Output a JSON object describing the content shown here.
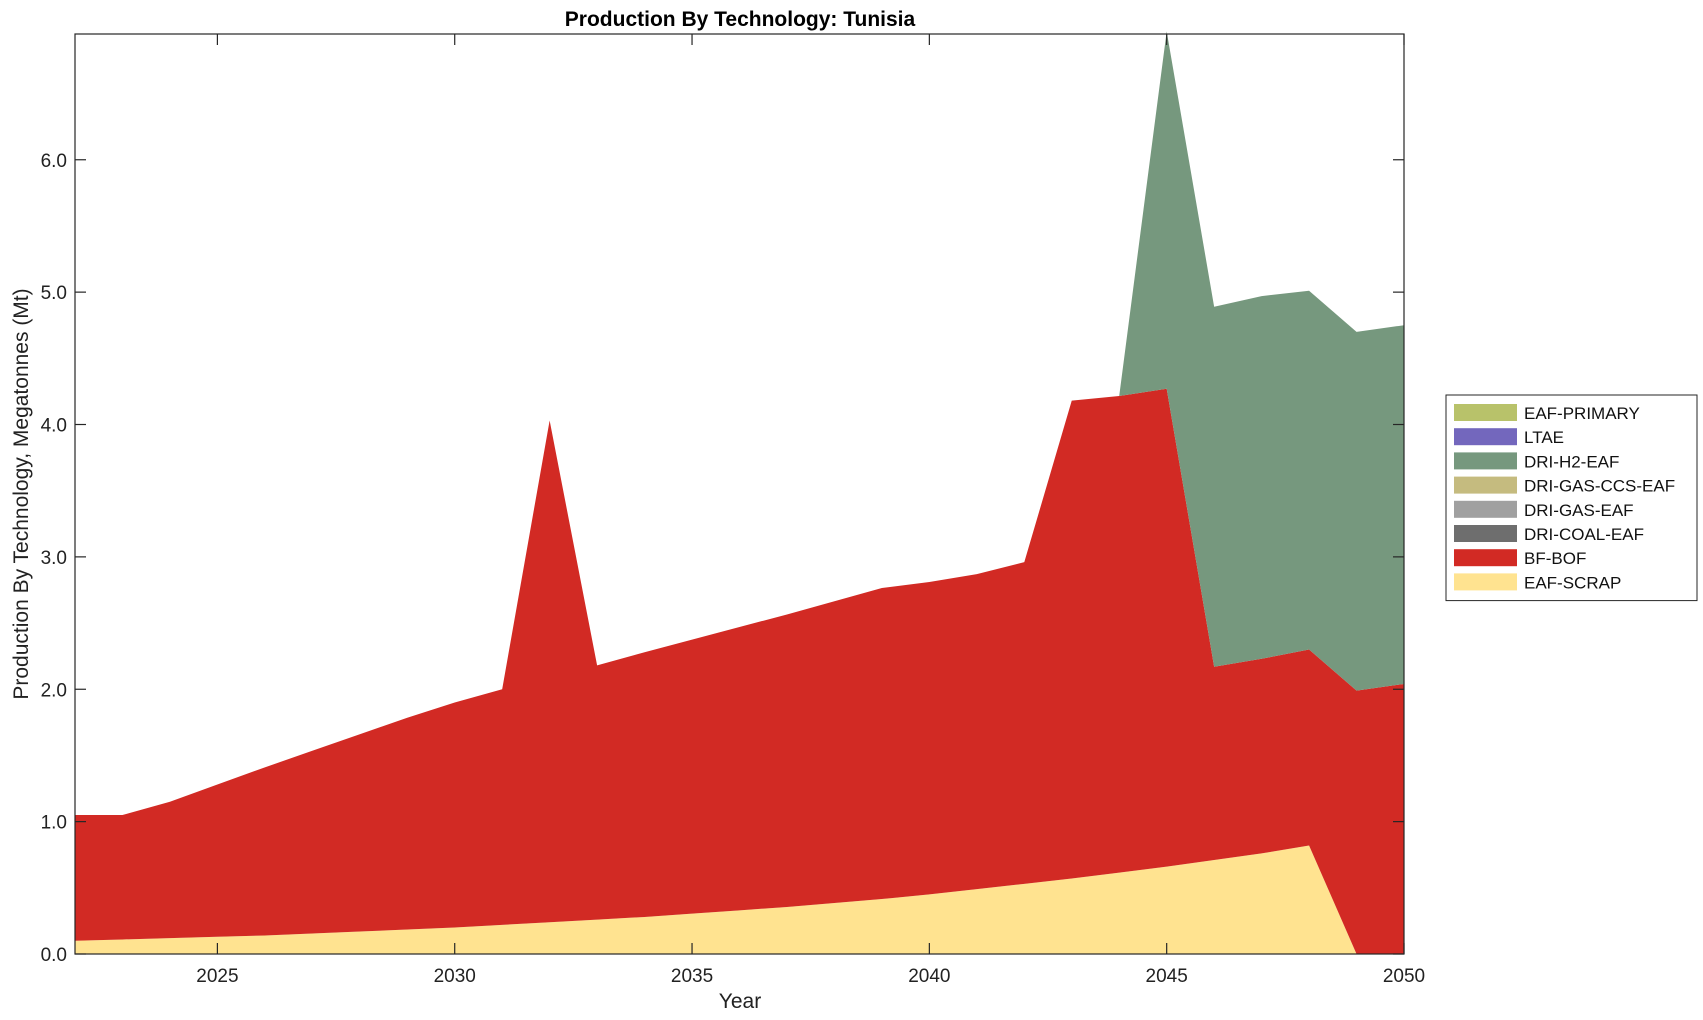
{
  "chart_data": {
    "type": "area",
    "stacked": true,
    "title": "Production By Technology: Tunisia",
    "xlabel": "Year",
    "ylabel": "Production By Technology, Megatonnes (Mt)",
    "xlim": [
      2022,
      2050
    ],
    "ylim": [
      0,
      6.95
    ],
    "xticks": [
      2025,
      2030,
      2035,
      2040,
      2045,
      2050
    ],
    "yticks": [
      "0.0",
      "1.0",
      "2.0",
      "3.0",
      "4.0",
      "5.0",
      "6.0"
    ],
    "x": [
      2022,
      2023,
      2024,
      2025,
      2026,
      2027,
      2028,
      2029,
      2030,
      2031,
      2032,
      2033,
      2034,
      2035,
      2036,
      2037,
      2038,
      2039,
      2040,
      2041,
      2042,
      2043,
      2044,
      2045,
      2046,
      2047,
      2048,
      2049,
      2050
    ],
    "legend_position": "outside-right",
    "series": [
      {
        "name": "EAF-SCRAP",
        "color": "#FFE390",
        "values": [
          0.1,
          0.11,
          0.12,
          0.13,
          0.14,
          0.155,
          0.17,
          0.185,
          0.2,
          0.22,
          0.24,
          0.26,
          0.28,
          0.305,
          0.33,
          0.355,
          0.385,
          0.415,
          0.45,
          0.49,
          0.53,
          0.57,
          0.615,
          0.66,
          0.71,
          0.76,
          0.82,
          0.0,
          0.0
        ]
      },
      {
        "name": "BF-BOF",
        "color": "#D22A24",
        "values": [
          0.95,
          0.94,
          1.03,
          1.15,
          1.27,
          1.38,
          1.49,
          1.6,
          1.7,
          1.78,
          3.79,
          1.92,
          2.0,
          2.07,
          2.14,
          2.21,
          2.28,
          2.35,
          2.36,
          2.38,
          2.43,
          3.61,
          3.6,
          3.61,
          1.46,
          1.47,
          1.48,
          1.99,
          2.04
        ]
      },
      {
        "name": "DRI-COAL-EAF",
        "color": "#6E6E6E",
        "values": [
          0,
          0,
          0,
          0,
          0,
          0,
          0,
          0,
          0,
          0,
          0,
          0,
          0,
          0,
          0,
          0,
          0,
          0,
          0,
          0,
          0,
          0,
          0,
          0,
          0,
          0,
          0,
          0,
          0
        ]
      },
      {
        "name": "DRI-GAS-EAF",
        "color": "#A0A0A0",
        "values": [
          0,
          0,
          0,
          0,
          0,
          0,
          0,
          0,
          0,
          0,
          0,
          0,
          0,
          0,
          0,
          0,
          0,
          0,
          0,
          0,
          0,
          0,
          0,
          0,
          0,
          0,
          0,
          0,
          0
        ]
      },
      {
        "name": "DRI-GAS-CCS-EAF",
        "color": "#C5BB7F",
        "values": [
          0,
          0,
          0,
          0,
          0,
          0,
          0,
          0,
          0,
          0,
          0,
          0,
          0,
          0,
          0,
          0,
          0,
          0,
          0,
          0,
          0,
          0,
          0,
          0,
          0,
          0,
          0,
          0,
          0
        ]
      },
      {
        "name": "DRI-H2-EAF",
        "color": "#76987E",
        "values": [
          0,
          0,
          0,
          0,
          0,
          0,
          0,
          0,
          0,
          0,
          0,
          0,
          0,
          0,
          0,
          0,
          0,
          0,
          0,
          0,
          0,
          0,
          0,
          2.7,
          2.72,
          2.74,
          2.71,
          2.71,
          2.71
        ]
      },
      {
        "name": "LTAE",
        "color": "#7367BD",
        "values": [
          0,
          0,
          0,
          0,
          0,
          0,
          0,
          0,
          0,
          0,
          0,
          0,
          0,
          0,
          0,
          0,
          0,
          0,
          0,
          0,
          0,
          0,
          0,
          0,
          0,
          0,
          0,
          0,
          0
        ]
      },
      {
        "name": "EAF-PRIMARY",
        "color": "#B8C26A",
        "values": [
          0,
          0,
          0,
          0,
          0,
          0,
          0,
          0,
          0,
          0,
          0,
          0,
          0,
          0,
          0,
          0,
          0,
          0,
          0,
          0,
          0,
          0,
          0,
          0,
          0,
          0,
          0,
          0,
          0
        ]
      }
    ],
    "legend_order": [
      "EAF-PRIMARY",
      "LTAE",
      "DRI-H2-EAF",
      "DRI-GAS-CCS-EAF",
      "DRI-GAS-EAF",
      "DRI-COAL-EAF",
      "BF-BOF",
      "EAF-SCRAP"
    ]
  }
}
